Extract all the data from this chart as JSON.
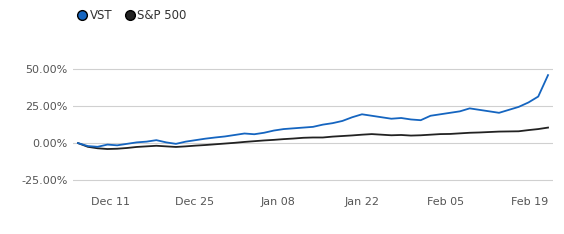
{
  "x_labels": [
    "Dec 11",
    "Dec 25",
    "Jan 08",
    "Jan 22",
    "Feb 05",
    "Feb 19"
  ],
  "ylim": [
    -0.33,
    0.62
  ],
  "yticks": [
    -0.25,
    0.0,
    0.25,
    0.5
  ],
  "ytick_labels": [
    "-25.00%",
    "0.00%",
    "25.00%",
    "50.00%"
  ],
  "vst_color": "#1565c0",
  "sp500_color": "#222222",
  "background_color": "#ffffff",
  "grid_color": "#d0d0d0",
  "legend_vst": "VST",
  "legend_sp500": "S&P 500",
  "vst_data": [
    0.0,
    -0.02,
    -0.025,
    -0.01,
    -0.015,
    -0.005,
    0.005,
    0.01,
    0.02,
    0.005,
    -0.005,
    0.01,
    0.02,
    0.03,
    0.038,
    0.045,
    0.055,
    0.065,
    0.06,
    0.07,
    0.085,
    0.095,
    0.1,
    0.105,
    0.11,
    0.125,
    0.135,
    0.15,
    0.175,
    0.195,
    0.185,
    0.175,
    0.165,
    0.17,
    0.16,
    0.155,
    0.185,
    0.195,
    0.205,
    0.215,
    0.235,
    0.225,
    0.215,
    0.205,
    0.225,
    0.245,
    0.275,
    0.315,
    0.46
  ],
  "sp500_data": [
    0.0,
    -0.025,
    -0.035,
    -0.04,
    -0.038,
    -0.033,
    -0.026,
    -0.022,
    -0.018,
    -0.022,
    -0.026,
    -0.022,
    -0.017,
    -0.013,
    -0.008,
    -0.003,
    0.002,
    0.008,
    0.013,
    0.018,
    0.022,
    0.027,
    0.031,
    0.036,
    0.038,
    0.038,
    0.044,
    0.048,
    0.052,
    0.057,
    0.061,
    0.057,
    0.053,
    0.055,
    0.051,
    0.053,
    0.057,
    0.061,
    0.062,
    0.066,
    0.07,
    0.072,
    0.075,
    0.078,
    0.079,
    0.08,
    0.088,
    0.095,
    0.105
  ]
}
